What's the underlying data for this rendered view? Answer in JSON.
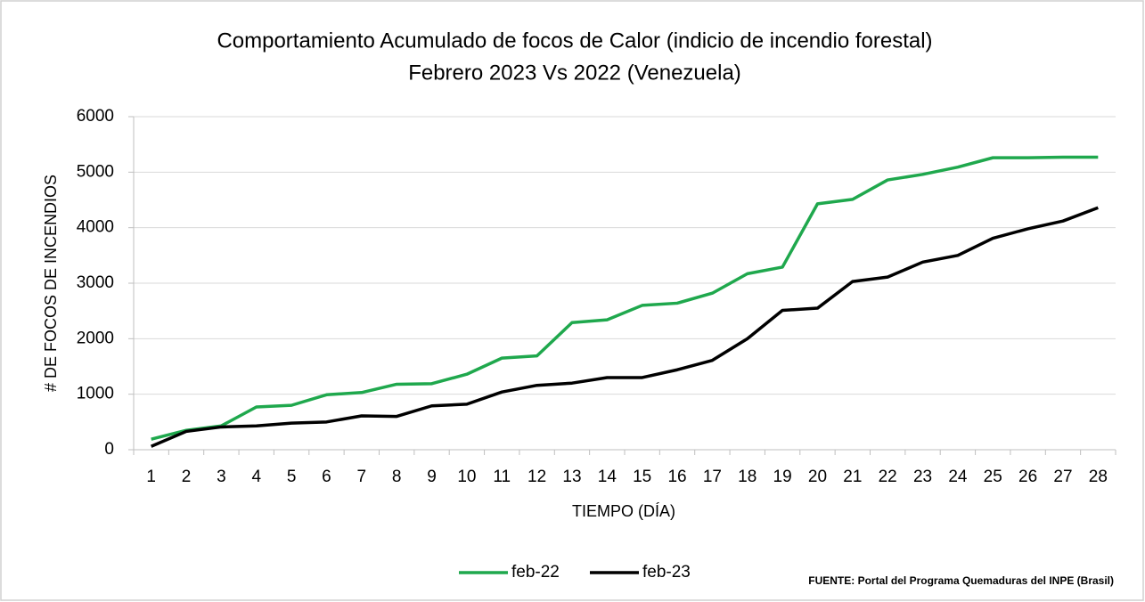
{
  "chart_data": {
    "type": "line",
    "title": "Comportamiento  Acumulado  de focos de Calor (indicio de incendio  forestal)",
    "subtitle": "Febrero  2023 Vs 2022 (Venezuela)",
    "x_label": "TIEMPO (DÍA)",
    "y_label": "# DE FOCOS DE INCENDIOS",
    "source": "FUENTE:  Portal del Programa Quemaduras del INPE (Brasil)",
    "categories": [
      "1",
      "2",
      "3",
      "4",
      "5",
      "6",
      "7",
      "8",
      "9",
      "10",
      "11",
      "12",
      "13",
      "14",
      "15",
      "16",
      "17",
      "18",
      "19",
      "20",
      "21",
      "22",
      "23",
      "24",
      "25",
      "26",
      "27",
      "28"
    ],
    "series": [
      {
        "name": "feb-22",
        "color": "#1fa84d",
        "values": [
          190,
          350,
          430,
          770,
          800,
          990,
          1030,
          1180,
          1190,
          1360,
          1650,
          1690,
          2290,
          2340,
          2600,
          2640,
          2820,
          3170,
          3290,
          4430,
          4510,
          4860,
          4960,
          5090,
          5260,
          5260,
          5270,
          5270
        ]
      },
      {
        "name": "feb-23",
        "color": "#000000",
        "values": [
          60,
          330,
          410,
          430,
          480,
          500,
          610,
          600,
          790,
          820,
          1040,
          1160,
          1200,
          1300,
          1300,
          1440,
          1610,
          2000,
          2510,
          2550,
          3030,
          3110,
          3380,
          3500,
          3810,
          3980,
          4120,
          4360
        ]
      }
    ],
    "ylim": [
      0,
      6000
    ],
    "yticks": [
      0,
      1000,
      2000,
      3000,
      4000,
      5000,
      6000
    ],
    "grid": true,
    "legend": "bottom"
  }
}
